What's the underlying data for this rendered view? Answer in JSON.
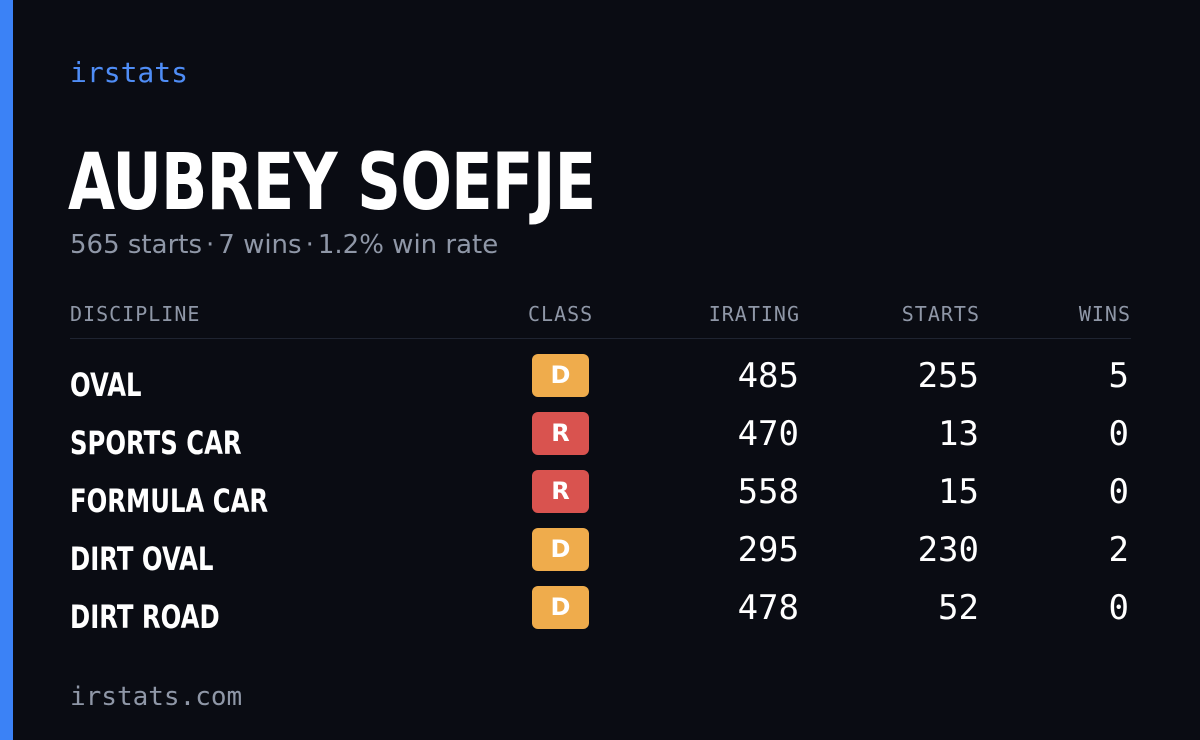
{
  "brand": "irstats",
  "driver": {
    "name": "AUBREY SOEFJE",
    "starts_text": "565 starts",
    "wins_text": "7 wins",
    "win_rate_text": "1.2% win rate",
    "separator": "·"
  },
  "table": {
    "headers": {
      "discipline": "DISCIPLINE",
      "class": "CLASS",
      "irating": "IRATING",
      "starts": "STARTS",
      "wins": "WINS"
    },
    "rows": [
      {
        "discipline": "OVAL",
        "class": "D",
        "irating": "485",
        "starts": "255",
        "wins": "5"
      },
      {
        "discipline": "SPORTS CAR",
        "class": "R",
        "irating": "470",
        "starts": "13",
        "wins": "0"
      },
      {
        "discipline": "FORMULA CAR",
        "class": "R",
        "irating": "558",
        "starts": "15",
        "wins": "0"
      },
      {
        "discipline": "DIRT OVAL",
        "class": "D",
        "irating": "295",
        "starts": "230",
        "wins": "2"
      },
      {
        "discipline": "DIRT ROAD",
        "class": "D",
        "irating": "478",
        "starts": "52",
        "wins": "0"
      }
    ]
  },
  "class_colors": {
    "D": "#efac4c",
    "R": "#d9534f"
  },
  "accent_color": "#3b82f6",
  "footer": "irstats.com"
}
